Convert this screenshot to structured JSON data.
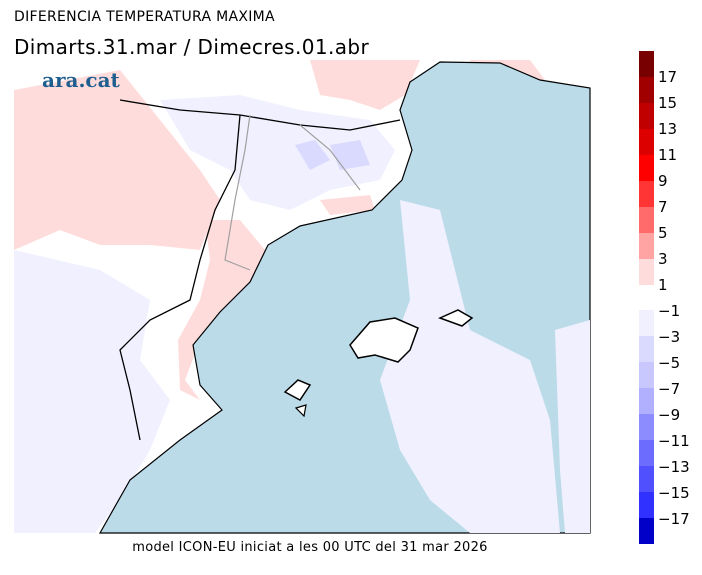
{
  "header": {
    "title": "DIFERENCIA TEMPERATURA MAXIMA",
    "subtitle": "Dimarts.31.mar / Dimecres.01.abr",
    "logo": "ara.cat"
  },
  "footer": "model ICON-EU iniciat a les 00 UTC del 31 mar 2026",
  "colors": {
    "sea": "#bcdbe9",
    "land": "#ffffff",
    "coast": "#000000",
    "border": "#a0a0a0"
  },
  "legend": {
    "positive": [
      {
        "label": "17",
        "color": "#780000"
      },
      {
        "label": "15",
        "color": "#a00000"
      },
      {
        "label": "13",
        "color": "#c00000"
      },
      {
        "label": "11",
        "color": "#dc0000"
      },
      {
        "label": "9",
        "color": "#ff0000"
      },
      {
        "label": "7",
        "color": "#ff3434"
      },
      {
        "label": "5",
        "color": "#ff6a6a"
      },
      {
        "label": "3",
        "color": "#ffa3a3"
      },
      {
        "label": "1",
        "color": "#ffdcdc"
      }
    ],
    "negative": [
      {
        "label": "−1",
        "color": "#f0f0ff"
      },
      {
        "label": "−3",
        "color": "#dadaff"
      },
      {
        "label": "−5",
        "color": "#c8c8ff"
      },
      {
        "label": "−7",
        "color": "#b0b0ff"
      },
      {
        "label": "−9",
        "color": "#8c8cff"
      },
      {
        "label": "−11",
        "color": "#6c6cff"
      },
      {
        "label": "−13",
        "color": "#5050ff"
      },
      {
        "label": "−15",
        "color": "#3030ff"
      },
      {
        "label": "−17",
        "color": "#0000c8"
      }
    ]
  }
}
